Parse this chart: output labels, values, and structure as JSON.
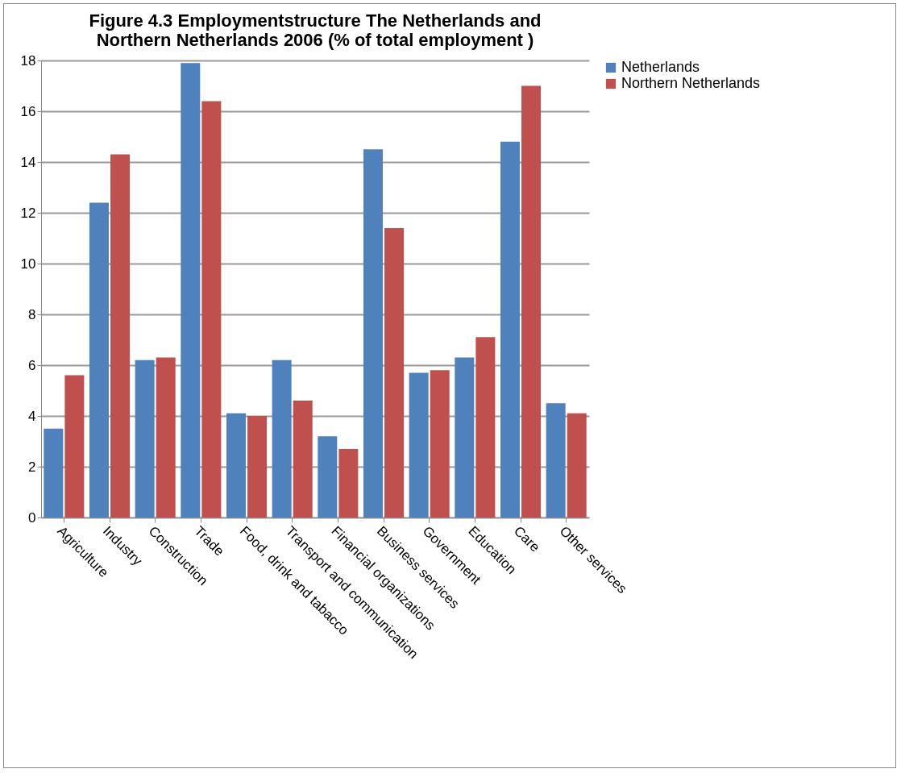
{
  "chart_data": {
    "type": "bar",
    "title": "Figure 4.3 Employmentstructure The Netherlands and Northern Netherlands 2006 (% of total employment )",
    "categories": [
      "Agriculture",
      "Industry",
      "Construction",
      "Trade",
      "Food, drink and tabacco",
      "Transport and communication",
      "Financial organizations",
      "Business services",
      "Government",
      "Education",
      "Care",
      "Other services"
    ],
    "series": [
      {
        "name": "Netherlands",
        "color": "#4f81bd",
        "values": [
          3.5,
          12.4,
          6.2,
          17.9,
          4.1,
          6.2,
          3.2,
          14.5,
          5.7,
          6.3,
          14.8,
          4.5
        ]
      },
      {
        "name": "Northern Netherlands",
        "color": "#c0504d",
        "values": [
          5.6,
          14.3,
          6.3,
          16.4,
          4.0,
          4.6,
          2.7,
          11.4,
          5.8,
          7.1,
          17.0,
          4.1
        ]
      }
    ],
    "ylim": [
      0,
      18
    ],
    "yticks": [
      0,
      2,
      4,
      6,
      8,
      10,
      12,
      14,
      16,
      18
    ],
    "grid": "y",
    "legend": "right"
  }
}
